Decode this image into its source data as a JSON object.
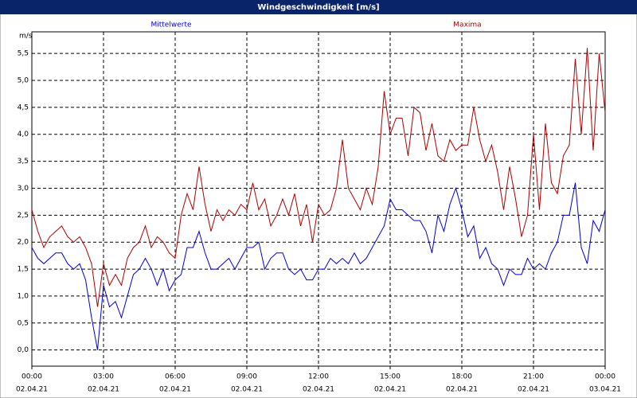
{
  "chart_data": {
    "type": "line",
    "title": "Windgeschwindigkeit [m/s]",
    "y_label": "m/s",
    "x": [
      0,
      0.25,
      0.5,
      0.75,
      1,
      1.25,
      1.5,
      1.75,
      2,
      2.25,
      2.5,
      2.75,
      3,
      3.25,
      3.5,
      3.75,
      4,
      4.25,
      4.5,
      4.75,
      5,
      5.25,
      5.5,
      5.75,
      6,
      6.25,
      6.5,
      6.75,
      7,
      7.25,
      7.5,
      7.75,
      8,
      8.25,
      8.5,
      8.75,
      9,
      9.25,
      9.5,
      9.75,
      10,
      10.25,
      10.5,
      10.75,
      11,
      11.25,
      11.5,
      11.75,
      12,
      12.25,
      12.5,
      12.75,
      13,
      13.25,
      13.5,
      13.75,
      14,
      14.25,
      14.5,
      14.75,
      15,
      15.25,
      15.5,
      15.75,
      16,
      16.25,
      16.5,
      16.75,
      17,
      17.25,
      17.5,
      17.75,
      18,
      18.25,
      18.5,
      18.75,
      19,
      19.25,
      19.5,
      19.75,
      20,
      20.25,
      20.5,
      20.75,
      21,
      21.25,
      21.5,
      21.75,
      22,
      22.25,
      22.5,
      22.75,
      23,
      23.25,
      23.5,
      23.75,
      24
    ],
    "series": [
      {
        "name": "Mittelwerte",
        "color": "#0000cc",
        "values": [
          1.9,
          1.7,
          1.6,
          1.7,
          1.8,
          1.8,
          1.6,
          1.5,
          1.6,
          1.3,
          0.6,
          0.0,
          1.2,
          0.8,
          0.9,
          0.6,
          1.0,
          1.4,
          1.5,
          1.7,
          1.5,
          1.2,
          1.5,
          1.1,
          1.3,
          1.4,
          1.9,
          1.9,
          2.2,
          1.8,
          1.5,
          1.5,
          1.6,
          1.7,
          1.5,
          1.7,
          1.9,
          1.9,
          2.0,
          1.5,
          1.7,
          1.8,
          1.8,
          1.5,
          1.4,
          1.5,
          1.3,
          1.3,
          1.5,
          1.5,
          1.7,
          1.6,
          1.7,
          1.6,
          1.8,
          1.6,
          1.7,
          1.9,
          2.1,
          2.3,
          2.8,
          2.6,
          2.6,
          2.5,
          2.4,
          2.4,
          2.2,
          1.8,
          2.5,
          2.2,
          2.7,
          3.0,
          2.6,
          2.1,
          2.3,
          1.7,
          1.9,
          1.6,
          1.5,
          1.2,
          1.5,
          1.4,
          1.4,
          1.7,
          1.5,
          1.6,
          1.5,
          1.8,
          2.0,
          2.5,
          2.5,
          3.1,
          1.9,
          1.6,
          2.4,
          2.2,
          2.6
        ]
      },
      {
        "name": "Maxima",
        "color": "#aa0000",
        "values": [
          2.6,
          2.2,
          1.9,
          2.1,
          2.2,
          2.3,
          2.1,
          2.0,
          2.1,
          1.9,
          1.6,
          0.8,
          1.6,
          1.2,
          1.4,
          1.2,
          1.7,
          1.9,
          2.0,
          2.3,
          1.9,
          2.1,
          2.0,
          1.8,
          1.7,
          2.5,
          2.9,
          2.6,
          3.4,
          2.7,
          2.2,
          2.6,
          2.4,
          2.6,
          2.5,
          2.7,
          2.6,
          3.1,
          2.6,
          2.8,
          2.3,
          2.5,
          2.8,
          2.5,
          2.9,
          2.3,
          2.7,
          2.0,
          2.7,
          2.5,
          2.6,
          3.0,
          3.9,
          3.0,
          2.8,
          2.6,
          3.0,
          2.7,
          3.4,
          4.8,
          4.0,
          4.3,
          4.3,
          3.6,
          4.5,
          4.4,
          3.7,
          4.2,
          3.6,
          3.5,
          3.9,
          3.7,
          3.8,
          3.8,
          4.5,
          3.9,
          3.5,
          3.8,
          3.3,
          2.6,
          3.4,
          2.8,
          2.1,
          2.5,
          4.0,
          2.6,
          4.2,
          3.1,
          2.9,
          3.6,
          3.8,
          5.4,
          4.0,
          5.6,
          3.7,
          5.5,
          4.4
        ]
      }
    ],
    "xlim": [
      0,
      24
    ],
    "xticks": [
      {
        "value": 0,
        "label": [
          "00:00",
          "02.04.21"
        ]
      },
      {
        "value": 3,
        "label": [
          "03:00",
          "02.04.21"
        ]
      },
      {
        "value": 6,
        "label": [
          "06:00",
          "02.04.21"
        ]
      },
      {
        "value": 9,
        "label": [
          "09:00",
          "02.04.21"
        ]
      },
      {
        "value": 12,
        "label": [
          "12:00",
          "02.04.21"
        ]
      },
      {
        "value": 15,
        "label": [
          "15:00",
          "02.04.21"
        ]
      },
      {
        "value": 18,
        "label": [
          "18:00",
          "02.04.21"
        ]
      },
      {
        "value": 21,
        "label": [
          "21:00",
          "02.04.21"
        ]
      },
      {
        "value": 24,
        "label": [
          "00:00",
          "03.04.21"
        ]
      }
    ],
    "ylim": [
      -0.3,
      5.9
    ],
    "yticks": [
      {
        "value": 0,
        "label": "0,0"
      },
      {
        "value": 0.5,
        "label": "0,5"
      },
      {
        "value": 1,
        "label": "1,0"
      },
      {
        "value": 1.5,
        "label": "1,5"
      },
      {
        "value": 2,
        "label": "2,0"
      },
      {
        "value": 2.5,
        "label": "2,5"
      },
      {
        "value": 3,
        "label": "3,0"
      },
      {
        "value": 3.5,
        "label": "3,5"
      },
      {
        "value": 4,
        "label": "4,0"
      },
      {
        "value": 4.5,
        "label": "4,5"
      },
      {
        "value": 5,
        "label": "5,0"
      },
      {
        "value": 5.5,
        "label": "5,5"
      }
    ],
    "grid": true
  }
}
